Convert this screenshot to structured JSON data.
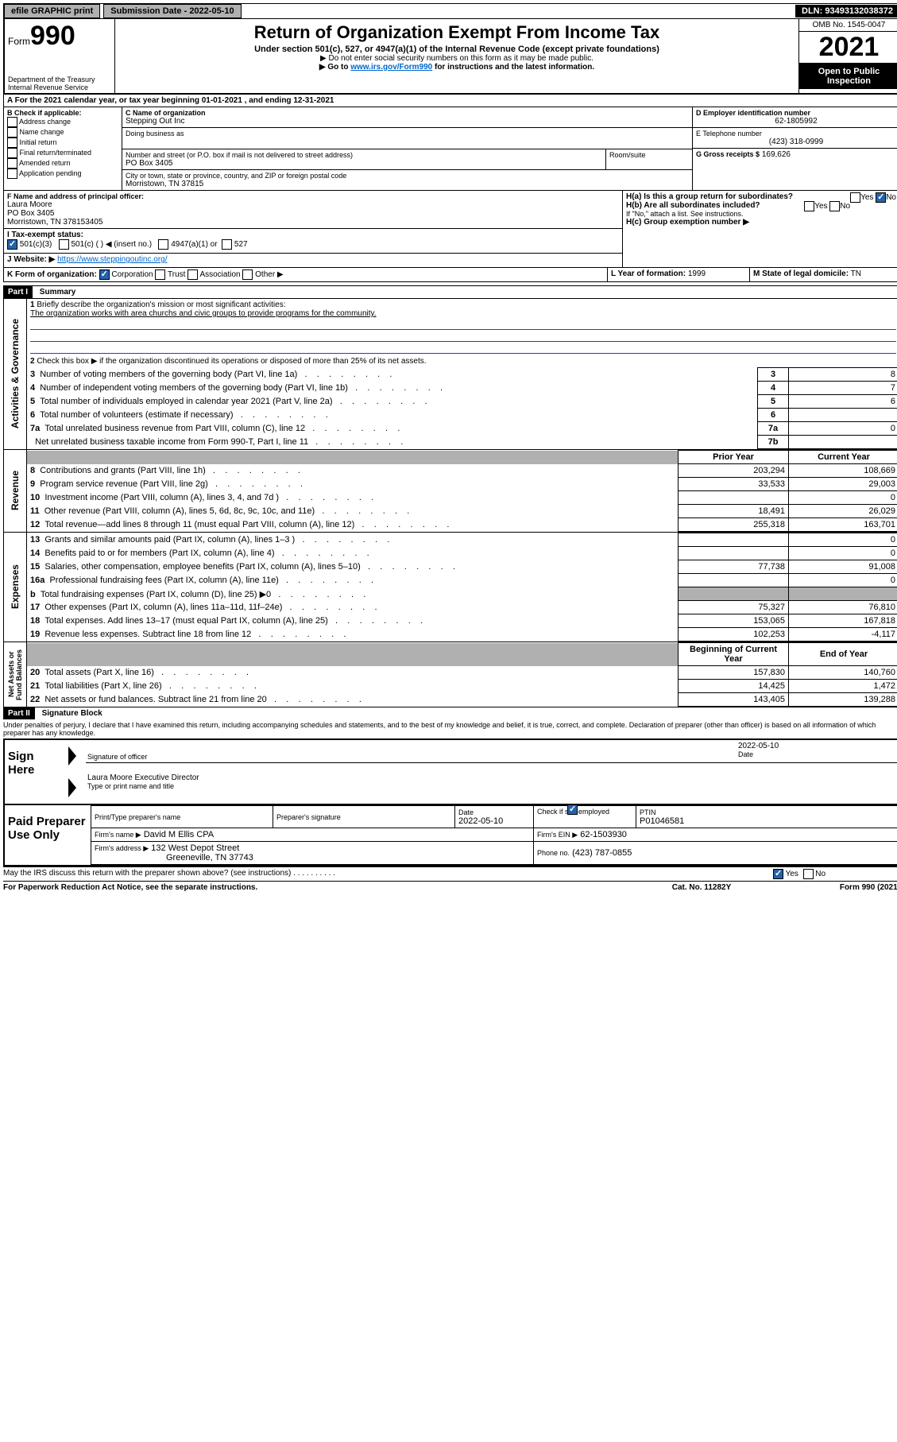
{
  "topbar": {
    "efile": "efile GRAPHIC print",
    "sub_label": "Submission Date - 2022-05-10",
    "dln": "DLN: 93493132038372"
  },
  "header": {
    "form_prefix": "Form",
    "form_number": "990",
    "dept": "Department of the Treasury",
    "irs": "Internal Revenue Service",
    "title": "Return of Organization Exempt From Income Tax",
    "subtitle": "Under section 501(c), 527, or 4947(a)(1) of the Internal Revenue Code (except private foundations)",
    "hint1": "▶ Do not enter social security numbers on this form as it may be made public.",
    "hint2_prefix": "▶ Go to ",
    "hint2_link": "www.irs.gov/Form990",
    "hint2_suffix": " for instructions and the latest information.",
    "omb": "OMB No. 1545-0047",
    "year": "2021",
    "open": "Open to Public Inspection"
  },
  "period": {
    "text": "A For the 2021 calendar year, or tax year beginning 01-01-2021    , and ending 12-31-2021"
  },
  "boxB": {
    "label": "B Check if applicable:",
    "opts": [
      "Address change",
      "Name change",
      "Initial return",
      "Final return/terminated",
      "Amended return",
      "Application pending"
    ]
  },
  "boxC": {
    "label": "C Name of organization",
    "name": "Stepping Out Inc",
    "dba_label": "Doing business as",
    "addr_label": "Number and street (or P.O. box if mail is not delivered to street address)",
    "room_label": "Room/suite",
    "addr": "PO Box 3405",
    "city_label": "City or town, state or province, country, and ZIP or foreign postal code",
    "city": "Morristown, TN  37815"
  },
  "boxD": {
    "label": "D Employer identification number",
    "value": "62-1805992"
  },
  "boxE": {
    "label": "E Telephone number",
    "value": "(423) 318-0999"
  },
  "boxG": {
    "label": "G Gross receipts $",
    "value": "169,626"
  },
  "boxF": {
    "label": "F Name and address of principal officer:",
    "name": "Laura Moore",
    "addr1": "PO Box 3405",
    "addr2": "Morristown, TN  378153405"
  },
  "boxH": {
    "a_label": "H(a)  Is this a group return for subordinates?",
    "b_label": "H(b)  Are all subordinates included?",
    "b_note": "If \"No,\" attach a list. See instructions.",
    "c_label": "H(c)  Group exemption number ▶",
    "yes": "Yes",
    "no": "No"
  },
  "boxI": {
    "label": "I     Tax-exempt status:",
    "o1": "501(c)(3)",
    "o2": "501(c) (  ) ◀ (insert no.)",
    "o3": "4947(a)(1) or",
    "o4": "527"
  },
  "boxJ": {
    "label": "J    Website: ▶",
    "value": "https://www.steppingoutinc.org/"
  },
  "boxK": {
    "label": "K Form of organization:",
    "o1": "Corporation",
    "o2": "Trust",
    "o3": "Association",
    "o4": "Other ▶"
  },
  "boxL": {
    "label": "L Year of formation:",
    "value": "1999"
  },
  "boxM": {
    "label": "M State of legal domicile:",
    "value": "TN"
  },
  "part1": {
    "num": "Part I",
    "title": "Summary",
    "line1_label": "Briefly describe the organization's mission or most significant activities:",
    "line1_text": "The organization works with area churchs and civic groups to provide programs for the community.",
    "line2": "Check this box ▶      if the organization discontinued its operations or disposed of more than 25% of its net assets.",
    "sections": {
      "activities": "Activities & Governance",
      "revenue": "Revenue",
      "expenses": "Expenses",
      "netassets": "Net Assets or Fund Balances"
    },
    "rows_ag": [
      {
        "n": "3",
        "label": "Number of voting members of the governing body (Part VI, line 1a)",
        "box": "3",
        "val": "8"
      },
      {
        "n": "4",
        "label": "Number of independent voting members of the governing body (Part VI, line 1b)",
        "box": "4",
        "val": "7"
      },
      {
        "n": "5",
        "label": "Total number of individuals employed in calendar year 2021 (Part V, line 2a)",
        "box": "5",
        "val": "6"
      },
      {
        "n": "6",
        "label": "Total number of volunteers (estimate if necessary)",
        "box": "6",
        "val": ""
      },
      {
        "n": "7a",
        "label": "Total unrelated business revenue from Part VIII, column (C), line 12",
        "box": "7a",
        "val": "0"
      },
      {
        "n": "",
        "label": "Net unrelated business taxable income from Form 990-T, Part I, line 11",
        "box": "7b",
        "val": ""
      }
    ],
    "col_hdr_prior": "Prior Year",
    "col_hdr_current": "Current Year",
    "rows_rev": [
      {
        "n": "8",
        "label": "Contributions and grants (Part VIII, line 1h)",
        "prior": "203,294",
        "cur": "108,669"
      },
      {
        "n": "9",
        "label": "Program service revenue (Part VIII, line 2g)",
        "prior": "33,533",
        "cur": "29,003"
      },
      {
        "n": "10",
        "label": "Investment income (Part VIII, column (A), lines 3, 4, and 7d )",
        "prior": "",
        "cur": "0"
      },
      {
        "n": "11",
        "label": "Other revenue (Part VIII, column (A), lines 5, 6d, 8c, 9c, 10c, and 11e)",
        "prior": "18,491",
        "cur": "26,029"
      },
      {
        "n": "12",
        "label": "Total revenue—add lines 8 through 11 (must equal Part VIII, column (A), line 12)",
        "prior": "255,318",
        "cur": "163,701"
      }
    ],
    "rows_exp": [
      {
        "n": "13",
        "label": "Grants and similar amounts paid (Part IX, column (A), lines 1–3 )",
        "prior": "",
        "cur": "0"
      },
      {
        "n": "14",
        "label": "Benefits paid to or for members (Part IX, column (A), line 4)",
        "prior": "",
        "cur": "0"
      },
      {
        "n": "15",
        "label": "Salaries, other compensation, employee benefits (Part IX, column (A), lines 5–10)",
        "prior": "77,738",
        "cur": "91,008"
      },
      {
        "n": "16a",
        "label": "Professional fundraising fees (Part IX, column (A), line 11e)",
        "prior": "",
        "cur": "0"
      },
      {
        "n": "b",
        "label": "Total fundraising expenses (Part IX, column (D), line 25) ▶0",
        "prior": "GREY",
        "cur": "GREY"
      },
      {
        "n": "17",
        "label": "Other expenses (Part IX, column (A), lines 11a–11d, 11f–24e)",
        "prior": "75,327",
        "cur": "76,810"
      },
      {
        "n": "18",
        "label": "Total expenses. Add lines 13–17 (must equal Part IX, column (A), line 25)",
        "prior": "153,065",
        "cur": "167,818"
      },
      {
        "n": "19",
        "label": "Revenue less expenses. Subtract line 18 from line 12",
        "prior": "102,253",
        "cur": "-4,117"
      }
    ],
    "col_hdr_begin": "Beginning of Current Year",
    "col_hdr_end": "End of Year",
    "rows_na": [
      {
        "n": "20",
        "label": "Total assets (Part X, line 16)",
        "prior": "157,830",
        "cur": "140,760"
      },
      {
        "n": "21",
        "label": "Total liabilities (Part X, line 26)",
        "prior": "14,425",
        "cur": "1,472"
      },
      {
        "n": "22",
        "label": "Net assets or fund balances. Subtract line 21 from line 20",
        "prior": "143,405",
        "cur": "139,288"
      }
    ]
  },
  "part2": {
    "num": "Part II",
    "title": "Signature Block",
    "declaration": "Under penalties of perjury, I declare that I have examined this return, including accompanying schedules and statements, and to the best of my knowledge and belief, it is true, correct, and complete. Declaration of preparer (other than officer) is based on all information of which preparer has any knowledge.",
    "sign_here": "Sign Here",
    "sig_officer": "Signature of officer",
    "sig_date": "Date",
    "sig_date_val": "2022-05-10",
    "officer_name": "Laura Moore  Executive Director",
    "type_name": "Type or print name and title",
    "paid": "Paid Preparer Use Only",
    "prep_name_label": "Print/Type preparer's name",
    "prep_sig_label": "Preparer's signature",
    "date_label": "Date",
    "date_val": "2022-05-10",
    "check_label": "Check         if self-employed",
    "ptin_label": "PTIN",
    "ptin": "P01046581",
    "firm_name_label": "Firm's name    ▶",
    "firm_name": "David M Ellis CPA",
    "firm_ein_label": "Firm's EIN ▶",
    "firm_ein": "62-1503930",
    "firm_addr_label": "Firm's address ▶",
    "firm_addr1": "132 West Depot Street",
    "firm_addr2": "Greeneville, TN  37743",
    "phone_label": "Phone no.",
    "phone": "(423) 787-0855",
    "discuss": "May the IRS discuss this return with the preparer shown above? (see instructions)",
    "paperwork": "For Paperwork Reduction Act Notice, see the separate instructions.",
    "catno": "Cat. No. 11282Y",
    "formno": "Form 990 (2021)"
  }
}
